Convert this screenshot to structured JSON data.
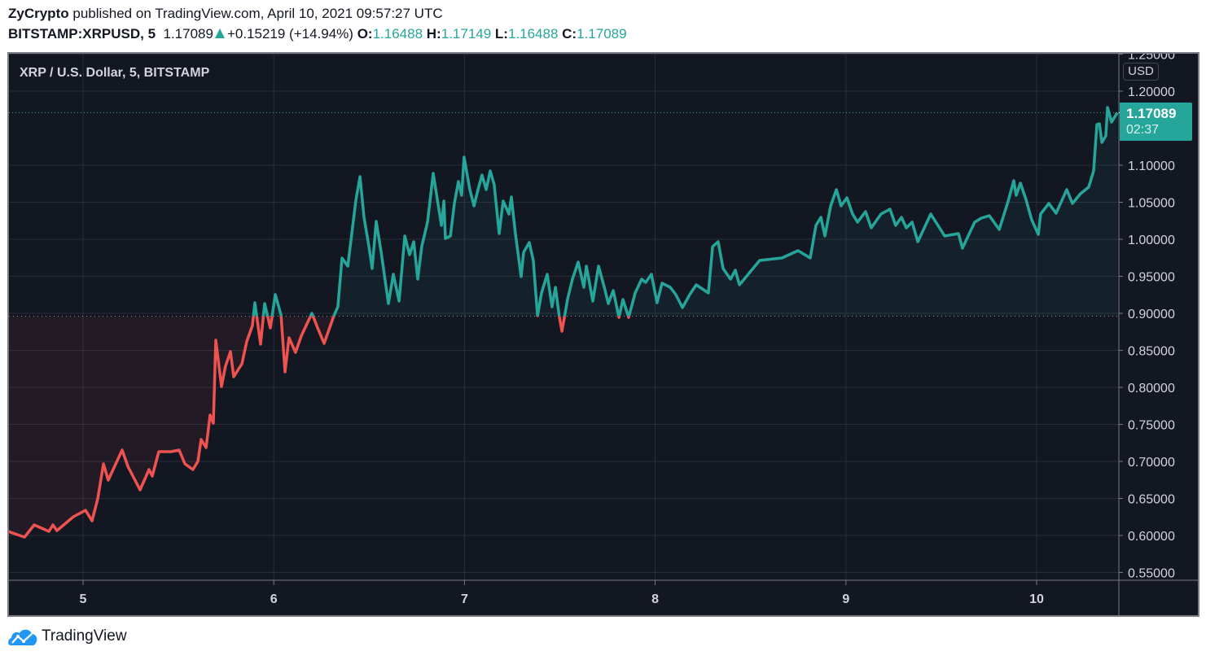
{
  "header": {
    "author": "ZyCrypto",
    "published_text": "published on TradingView.com, April 10, 2021 09:57:27 UTC",
    "symbol": "BITSTAMP:XRPUSD, 5",
    "last": "1.17089",
    "change": "+0.15219 (+14.94%)",
    "o_label": "O:",
    "o": "1.16488",
    "h_label": "H:",
    "h": "1.17149",
    "l_label": "L:",
    "l": "1.16488",
    "c_label": "C:",
    "c": "1.17089"
  },
  "footer": {
    "brand": "TradingView",
    "logo_icon": "tradingview-cloud-logo-icon"
  },
  "colors": {
    "background": "#131722",
    "up": "#26a69a",
    "down": "#ef5350",
    "grid": "#2a2e39",
    "axis_text": "#d1d4dc",
    "logo": "#2196f3"
  },
  "chart_data": {
    "type": "line",
    "style": "baseline",
    "title": "XRP / U.S. Dollar, 5, BITSTAMP",
    "currency": "USD",
    "xlabel": "",
    "ylabel": "",
    "grid": true,
    "xlim": [
      4.6,
      10.43
    ],
    "ylim": [
      0.535,
      1.25
    ],
    "baseline": 0.896,
    "last_price_label": "1.17089",
    "countdown": "02:37",
    "xticks": [
      {
        "v": 5,
        "label": "5"
      },
      {
        "v": 6,
        "label": "6"
      },
      {
        "v": 7,
        "label": "7"
      },
      {
        "v": 8,
        "label": "8"
      },
      {
        "v": 9,
        "label": "9"
      },
      {
        "v": 10,
        "label": "10"
      }
    ],
    "yticks": [
      {
        "v": 0.55,
        "label": "0.55000"
      },
      {
        "v": 0.6,
        "label": "0.60000"
      },
      {
        "v": 0.65,
        "label": "0.65000"
      },
      {
        "v": 0.7,
        "label": "0.70000"
      },
      {
        "v": 0.75,
        "label": "0.75000"
      },
      {
        "v": 0.8,
        "label": "0.80000"
      },
      {
        "v": 0.85,
        "label": "0.85000"
      },
      {
        "v": 0.9,
        "label": "0.90000"
      },
      {
        "v": 0.95,
        "label": "0.95000"
      },
      {
        "v": 1.0,
        "label": "1.00000"
      },
      {
        "v": 1.05,
        "label": "1.05000"
      },
      {
        "v": 1.1,
        "label": "1.10000"
      },
      {
        "v": 1.2,
        "label": "1.20000"
      },
      {
        "v": 1.25,
        "label": "1.25000"
      }
    ],
    "x": [
      4.607,
      4.693,
      4.744,
      4.821,
      4.842,
      4.863,
      4.949,
      5.013,
      5.047,
      5.077,
      5.107,
      5.132,
      5.205,
      5.235,
      5.299,
      5.346,
      5.363,
      5.397,
      5.461,
      5.504,
      5.534,
      5.576,
      5.602,
      5.619,
      5.645,
      5.666,
      5.683,
      5.696,
      5.726,
      5.747,
      5.773,
      5.79,
      5.833,
      5.858,
      5.888,
      5.901,
      5.931,
      5.952,
      5.982,
      6.008,
      6.038,
      6.059,
      6.08,
      6.114,
      6.144,
      6.2,
      6.23,
      6.264,
      6.315,
      6.336,
      6.358,
      6.388,
      6.43,
      6.452,
      6.473,
      6.499,
      6.516,
      6.537,
      6.563,
      6.601,
      6.627,
      6.657,
      6.687,
      6.712,
      6.734,
      6.755,
      6.776,
      6.806,
      6.836,
      6.879,
      6.892,
      6.9,
      6.926,
      6.947,
      6.968,
      6.985,
      6.998,
      7.028,
      7.05,
      7.071,
      7.092,
      7.114,
      7.135,
      7.156,
      7.182,
      7.203,
      7.233,
      7.246,
      7.267,
      7.297,
      7.31,
      7.34,
      7.361,
      7.383,
      7.404,
      7.434,
      7.459,
      7.477,
      7.498,
      7.511,
      7.541,
      7.566,
      7.596,
      7.626,
      7.639,
      7.673,
      7.703,
      7.733,
      7.754,
      7.78,
      7.81,
      7.831,
      7.861,
      7.895,
      7.929,
      7.95,
      7.98,
      8.01,
      8.036,
      8.079,
      8.108,
      8.143,
      8.181,
      8.215,
      8.279,
      8.301,
      8.33,
      8.356,
      8.395,
      8.42,
      8.442,
      8.548,
      8.664,
      8.749,
      8.813,
      8.843,
      8.869,
      8.89,
      8.92,
      8.95,
      8.975,
      9.005,
      9.035,
      9.061,
      9.103,
      9.133,
      9.184,
      9.231,
      9.261,
      9.291,
      9.317,
      9.347,
      9.377,
      9.445,
      9.518,
      9.59,
      9.611,
      9.675,
      9.71,
      9.752,
      9.804,
      9.851,
      9.88,
      9.893,
      9.915,
      9.944,
      9.974,
      10.009,
      10.021,
      10.064,
      10.102,
      10.158,
      10.188,
      10.23,
      10.273,
      10.299,
      10.316,
      10.329,
      10.342,
      10.363,
      10.372,
      10.393,
      10.423
    ],
    "y": [
      0.6055,
      0.5978,
      0.6143,
      0.6055,
      0.6143,
      0.6066,
      0.6253,
      0.6341,
      0.6198,
      0.6495,
      0.6967,
      0.6747,
      0.7154,
      0.6934,
      0.6615,
      0.689,
      0.6802,
      0.7132,
      0.7132,
      0.7154,
      0.6967,
      0.689,
      0.7,
      0.7297,
      0.7187,
      0.7626,
      0.7516,
      0.8637,
      0.8011,
      0.8286,
      0.8484,
      0.8143,
      0.8319,
      0.8615,
      0.8835,
      0.9143,
      0.8582,
      0.9132,
      0.8802,
      0.9253,
      0.8978,
      0.8209,
      0.867,
      0.8473,
      0.8692,
      0.9,
      0.8802,
      0.8593,
      0.8967,
      0.9088,
      0.9747,
      0.9637,
      1.0516,
      1.0846,
      1.0297,
      0.9901,
      0.9604,
      1.0242,
      0.9824,
      0.9132,
      0.9527,
      0.9165,
      1.0044,
      0.9791,
      0.9967,
      0.9462,
      0.9901,
      1.0231,
      1.089,
      1.0187,
      1.0516,
      1.0011,
      1.0044,
      1.0484,
      1.078,
      1.0593,
      1.111,
      1.067,
      1.0451,
      1.067,
      1.0868,
      1.067,
      1.0923,
      1.0736,
      1.0077,
      1.0516,
      1.0341,
      1.0571,
      1.0077,
      0.9495,
      0.9824,
      0.9956,
      0.9714,
      0.8967,
      0.9275,
      0.9527,
      0.9088,
      0.9352,
      0.8945,
      0.8758,
      0.9198,
      0.9462,
      0.9692,
      0.9352,
      0.9637,
      0.9165,
      0.9637,
      0.9352,
      0.9132,
      0.9308,
      0.8945,
      0.9187,
      0.8945,
      0.9275,
      0.9462,
      0.9418,
      0.9527,
      0.9143,
      0.9407,
      0.9352,
      0.9253,
      0.9077,
      0.9253,
      0.9385,
      0.9275,
      0.9901,
      0.9967,
      0.9604,
      0.9462,
      0.9582,
      0.9385,
      0.9714,
      0.9747,
      0.9846,
      0.9747,
      1.0187,
      1.0297,
      1.0044,
      1.0451,
      1.067,
      1.0451,
      1.056,
      1.0341,
      1.0231,
      1.0374,
      1.0154,
      1.0341,
      1.0407,
      1.0187,
      1.0297,
      1.0154,
      1.0231,
      0.9967,
      1.0341,
      1.0044,
      1.0077,
      0.9879,
      1.0231,
      1.0286,
      1.0319,
      1.0132,
      1.0516,
      1.0791,
      1.0593,
      1.0758,
      1.0538,
      1.0264,
      1.0066,
      1.0341,
      1.0484,
      1.0352,
      1.067,
      1.0484,
      1.0615,
      1.0703,
      1.0923,
      1.1549,
      1.156,
      1.1308,
      1.1396,
      1.178,
      1.1582,
      1.1709
    ]
  }
}
